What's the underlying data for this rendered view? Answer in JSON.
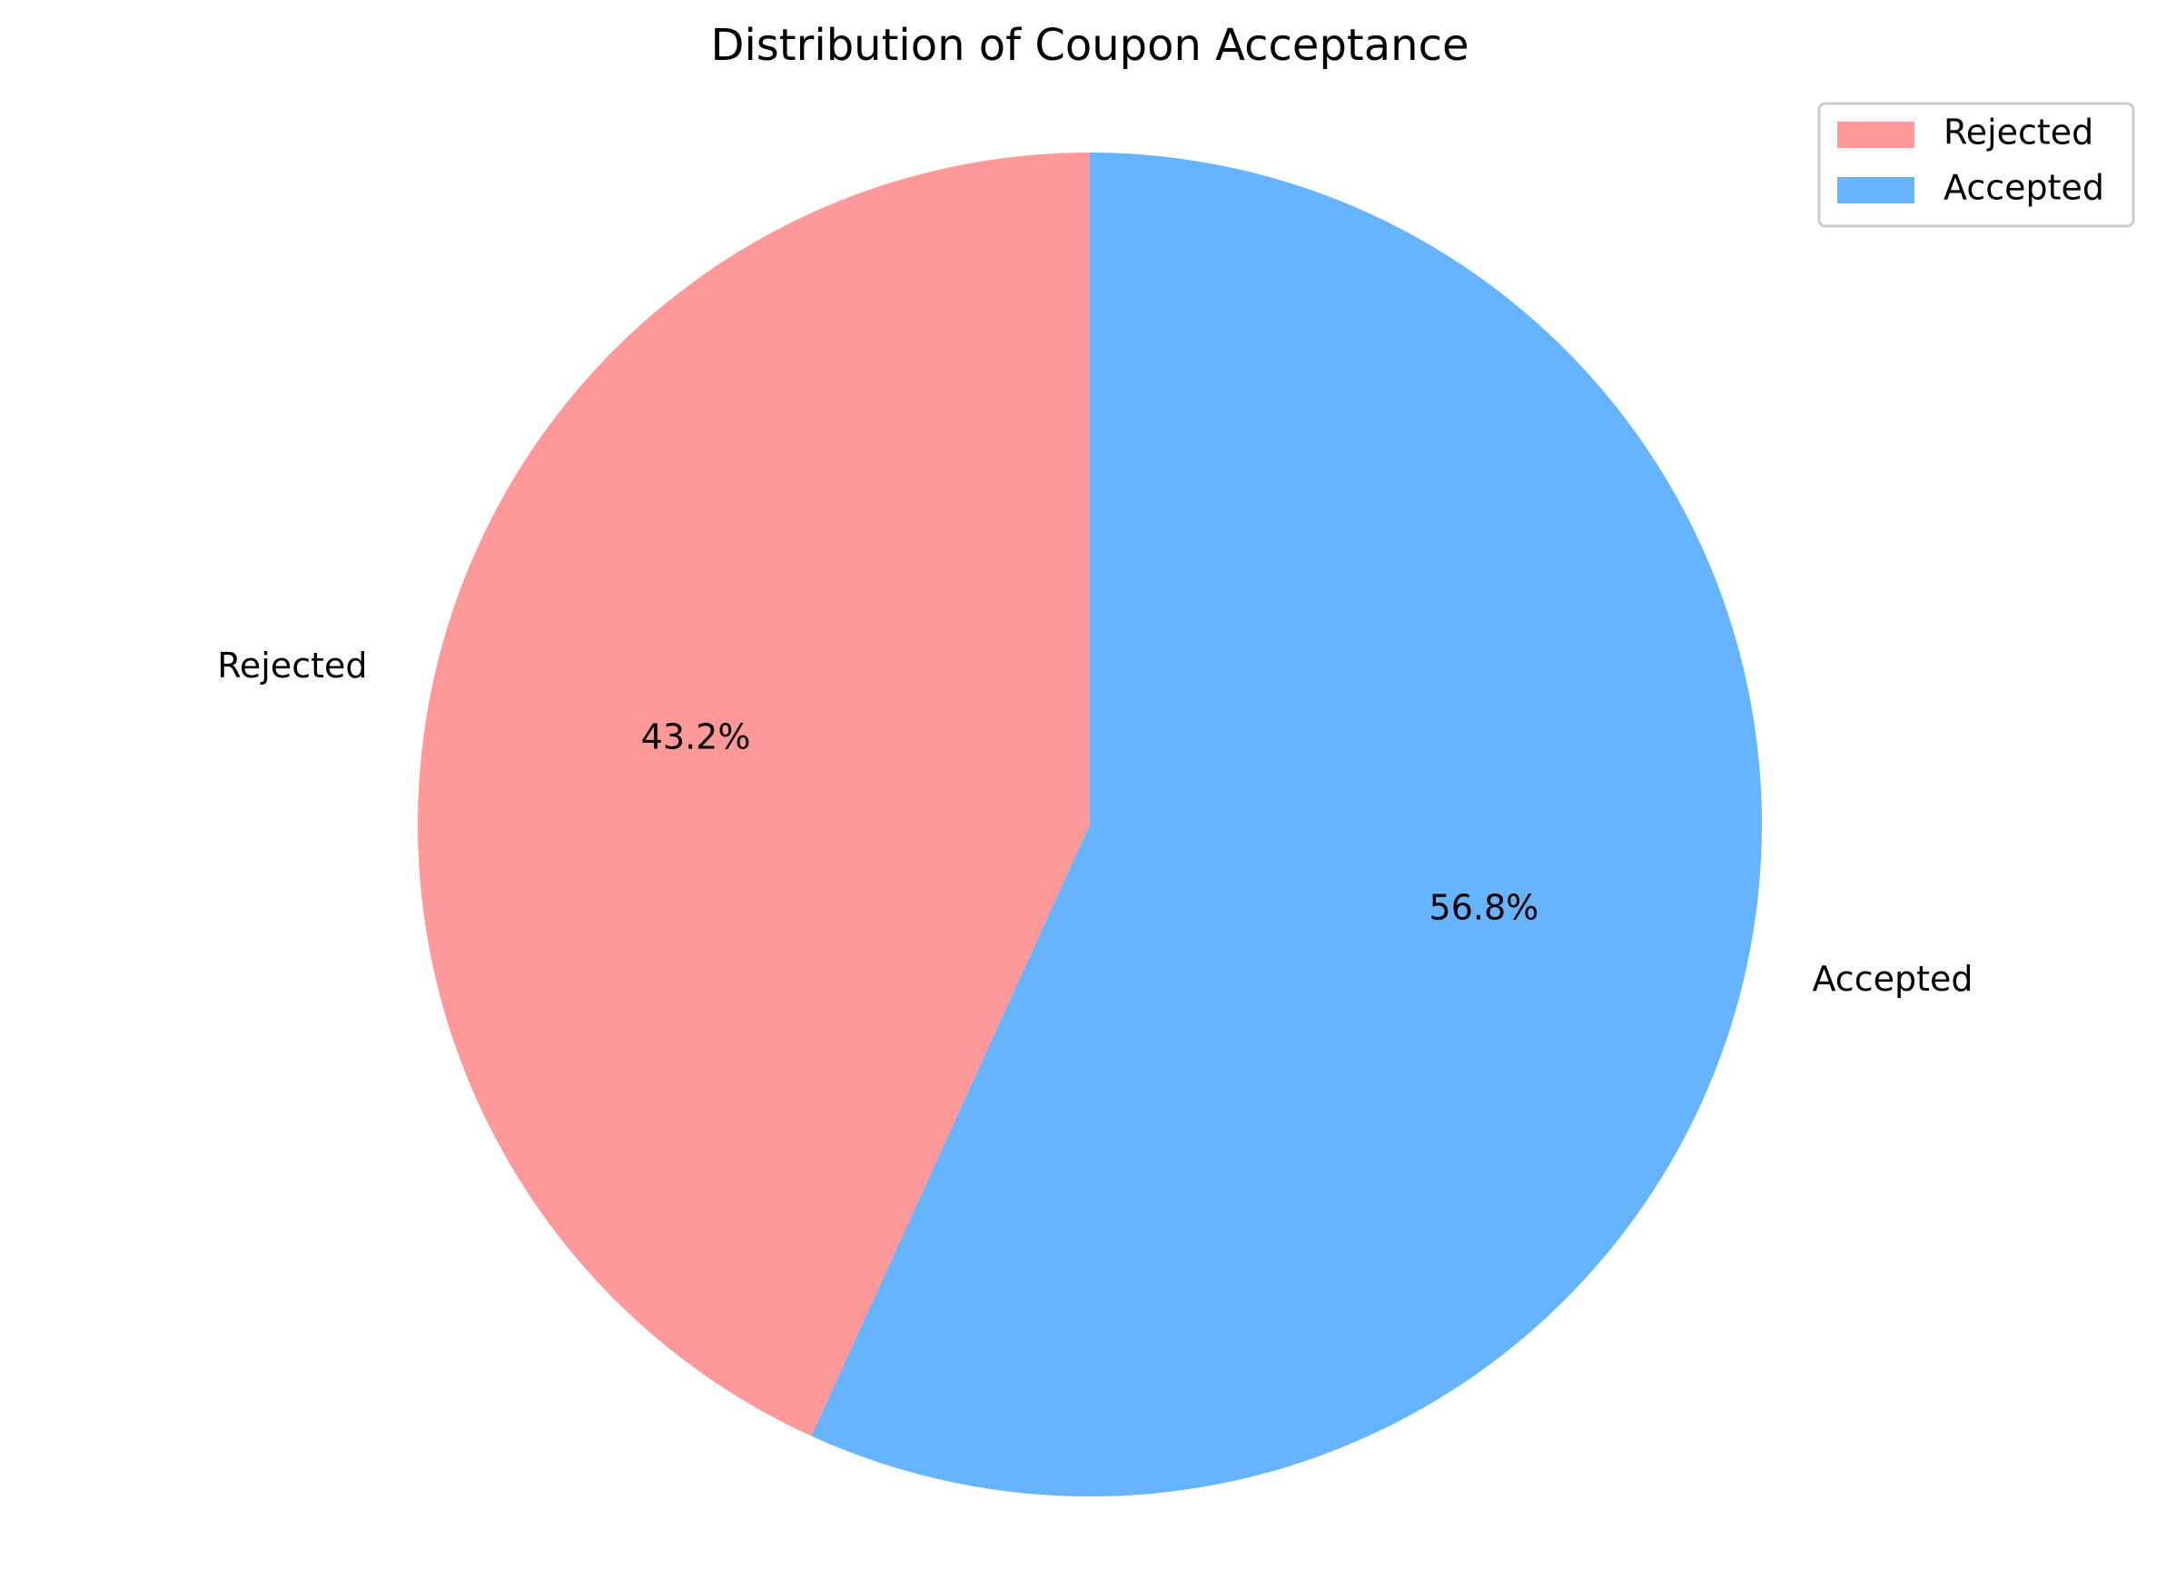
{
  "chart_data": {
    "type": "pie",
    "title": "Distribution of Coupon Acceptance",
    "categories": [
      "Rejected",
      "Accepted"
    ],
    "values": [
      43.2,
      56.8
    ],
    "value_labels": [
      "43.2%",
      "56.8%"
    ],
    "colors": [
      "#ff9999",
      "#66b3ff"
    ],
    "start_angle_deg": 90,
    "direction": "counterclockwise",
    "legend": {
      "placement": "top-right",
      "entries": [
        "Rejected",
        "Accepted"
      ]
    }
  }
}
